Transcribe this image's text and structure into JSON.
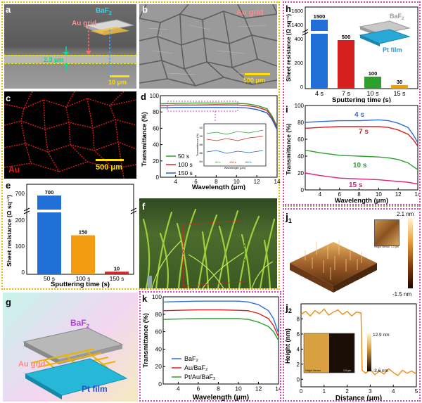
{
  "panels": {
    "a": {
      "label": "a",
      "baf2": "BaF",
      "baf2_sub": "2",
      "au_grid": "Au grid",
      "thickness": "2.3 μm",
      "scale": "10 μm"
    },
    "b": {
      "label": "b",
      "title": "Au grid",
      "scale": "500 μm"
    },
    "c": {
      "label": "c",
      "element": "Au",
      "scale": "500 μm"
    },
    "f": {
      "label": "f"
    },
    "g": {
      "label": "g",
      "baf2": "BaF",
      "baf2_sub": "2",
      "au_grid": "Au grid",
      "pt_film": "Pt film"
    },
    "h_inset": {
      "baf2": "BaF",
      "baf2_sub": "2",
      "pt_film": "Pt film"
    },
    "j1": {
      "label": "j",
      "label_sub": "1",
      "top": "2.1 nm",
      "bottom": "-1.5 nm",
      "inset_caption": "Height Sensor",
      "inset_scale": "1.0 μm"
    },
    "j2_inset": {
      "top": "12.9 nm",
      "bottom": "-3.6 nm",
      "caption": "Height Sensor",
      "scale": "1.0 μm"
    }
  },
  "colors": {
    "orange_border": "#f0b400",
    "pink_border": "#e040b8",
    "green_border": "#7cc242",
    "teal": "#2bb3c9",
    "purple": "#a23ee0"
  },
  "chart_data": [
    {
      "id": "d",
      "type": "line",
      "label": "d",
      "xlabel": "Wavelength (μm)",
      "ylabel": "Transmittance (%)",
      "xlim": [
        2.5,
        14
      ],
      "ylim": [
        0,
        100
      ],
      "xticks": [
        4,
        6,
        8,
        10,
        12,
        14
      ],
      "yticks": [
        0,
        20,
        40,
        60,
        80,
        100
      ],
      "x": [
        2.5,
        4,
        6,
        8,
        10,
        11,
        12,
        13,
        13.5,
        14
      ],
      "series": [
        {
          "name": "50 s",
          "color": "#2ca02c",
          "values": [
            90,
            90.5,
            91,
            91,
            90.5,
            90,
            88,
            84,
            75,
            62
          ]
        },
        {
          "name": "100 s",
          "color": "#d62728",
          "values": [
            88,
            88.5,
            88.5,
            88.8,
            88.5,
            88,
            86,
            82,
            73,
            60
          ]
        },
        {
          "name": "150 s",
          "color": "#1f5fc8",
          "values": [
            85,
            85.5,
            85.5,
            85.5,
            85.5,
            85,
            83,
            79,
            71,
            58
          ]
        }
      ],
      "inset": {
        "ylabel": "Transmittance (%)",
        "xlabel": "Wavelength (μm)",
        "yticks": [
          "92",
          "90",
          "88",
          "86",
          "84"
        ],
        "legend": [
          "50 s",
          "100 s",
          "150 s"
        ]
      }
    },
    {
      "id": "e",
      "type": "bar",
      "label": "e",
      "xlabel": "Sputtering time (s)",
      "ylabel": "Sheet resistance (Ω sq⁻¹)",
      "categories": [
        "50 s",
        "100 s",
        "150 s"
      ],
      "values": [
        700,
        150,
        10
      ],
      "value_labels": [
        "700",
        "150",
        "10"
      ],
      "colors": [
        "#1f6fd6",
        "#f39c12",
        "#e02020"
      ],
      "yticks_low": [
        "0",
        "100",
        "200"
      ],
      "yticks_high": [
        "700"
      ]
    },
    {
      "id": "h",
      "type": "bar",
      "label": "h",
      "xlabel": "Sputtering time (s)",
      "ylabel": "Sheet resistance (Ω sq⁻¹)",
      "categories": [
        "4 s",
        "7 s",
        "10 s",
        "15 s"
      ],
      "values": [
        1500,
        500,
        100,
        30
      ],
      "value_labels": [
        "1500",
        "500",
        "100",
        "30"
      ],
      "colors": [
        "#1f6fd6",
        "#d62020",
        "#2ca02c",
        "#f0a000"
      ],
      "yticks_low": [
        "0",
        "200",
        "400"
      ],
      "yticks_high": [
        "1400",
        "1600"
      ]
    },
    {
      "id": "i",
      "type": "line",
      "label": "i",
      "xlabel": "Wavelength (μm)",
      "ylabel": "Transmittance (%)",
      "xlim": [
        2.5,
        14
      ],
      "ylim": [
        0,
        100
      ],
      "xticks": [
        4,
        6,
        8,
        10,
        12,
        14
      ],
      "yticks": [
        0,
        20,
        40,
        60,
        80,
        100
      ],
      "x": [
        2.5,
        4,
        6,
        8,
        10,
        11,
        12,
        13,
        13.5,
        14
      ],
      "series": [
        {
          "name": "4 s",
          "color": "#2f6fd6",
          "values": [
            80,
            81,
            82,
            82,
            83,
            82,
            79,
            74,
            66,
            56
          ]
        },
        {
          "name": "7 s",
          "color": "#d62020",
          "values": [
            73,
            74,
            75,
            75,
            75,
            74,
            71,
            66,
            60,
            52
          ]
        },
        {
          "name": "10 s",
          "color": "#2ca02c",
          "values": [
            47,
            44,
            41,
            40,
            39,
            38,
            36,
            32,
            28,
            24
          ]
        },
        {
          "name": "15 s",
          "color": "#e0207a",
          "values": [
            20,
            17,
            14,
            13,
            12,
            11,
            10,
            9,
            8,
            7
          ]
        }
      ]
    },
    {
      "id": "k",
      "type": "line",
      "label": "k",
      "xlabel": "Wavelength (μm)",
      "ylabel": "Transmittance (%)",
      "xlim": [
        2.5,
        14
      ],
      "ylim": [
        0,
        100
      ],
      "xticks": [
        4,
        6,
        8,
        10,
        12,
        14
      ],
      "yticks": [
        0,
        20,
        40,
        60,
        80,
        100
      ],
      "x": [
        2.5,
        4,
        6,
        8,
        10,
        11,
        12,
        13,
        13.5,
        14
      ],
      "series": [
        {
          "name": "BaF₂",
          "color": "#2f6fd6",
          "values": [
            94,
            94.5,
            95,
            95,
            95,
            94,
            91,
            84,
            75,
            58
          ]
        },
        {
          "name": "Au/BaF₂",
          "color": "#d62020",
          "values": [
            84,
            84.5,
            85,
            85,
            84.5,
            84,
            81,
            75,
            67,
            54
          ]
        },
        {
          "name": "Pt/Au/BaF₂",
          "color": "#2ca02c",
          "values": [
            74,
            74.5,
            75,
            75,
            75,
            74,
            71,
            66,
            60,
            50
          ]
        }
      ]
    },
    {
      "id": "j2",
      "type": "line",
      "label": "j",
      "label_sub": "2",
      "xlabel": "Distance (μm)",
      "ylabel": "Height (nm)",
      "xlim": [
        0,
        5
      ],
      "ylim": [
        -1,
        10
      ],
      "xticks": [
        0,
        1,
        2,
        3,
        4,
        5
      ],
      "yticks": [
        0,
        2,
        4,
        6,
        8
      ],
      "series": [
        {
          "name": "profile",
          "color": "#f08a10",
          "x": [
            0,
            0.2,
            0.4,
            0.6,
            0.8,
            1.0,
            1.2,
            1.4,
            1.6,
            1.8,
            2.0,
            2.2,
            2.4,
            2.6,
            2.65,
            2.8,
            3.0,
            3.2,
            3.4,
            3.6,
            3.8,
            4.0,
            4.2,
            4.4,
            4.6,
            4.8,
            5.0
          ],
          "values": [
            8.6,
            9.0,
            8.4,
            9.1,
            8.7,
            9.3,
            8.5,
            8.9,
            9.2,
            8.6,
            9.0,
            8.4,
            8.9,
            8.8,
            1.2,
            0.8,
            1.3,
            0.6,
            1.1,
            0.7,
            1.4,
            0.9,
            0.5,
            1.2,
            0.8,
            1.1,
            0.7
          ]
        }
      ]
    }
  ]
}
